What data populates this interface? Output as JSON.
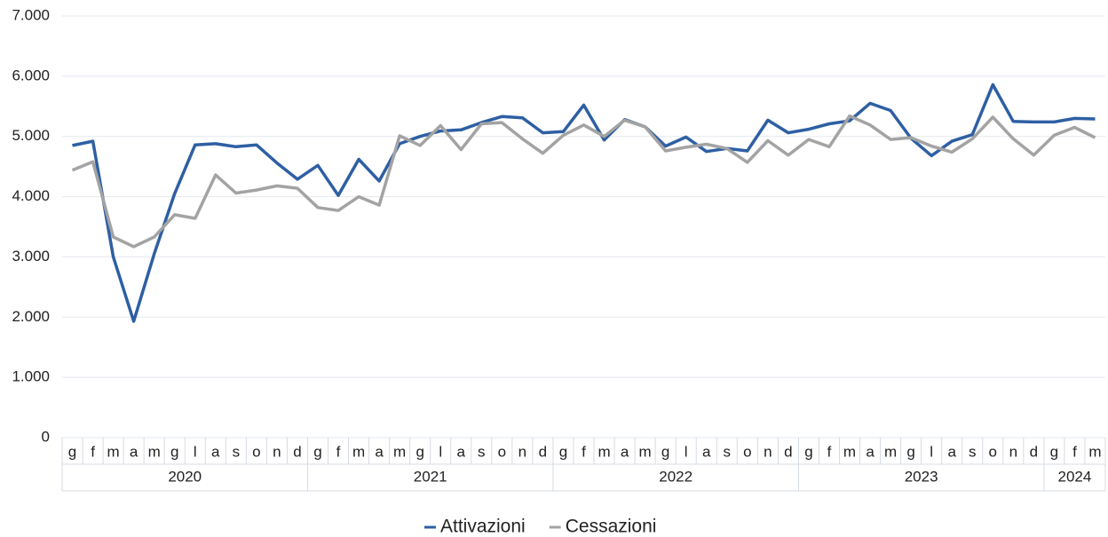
{
  "chart_data": {
    "type": "line",
    "periods": [
      {
        "year": "2020",
        "months": [
          "g",
          "f",
          "m",
          "a",
          "m",
          "g",
          "l",
          "a",
          "s",
          "o",
          "n",
          "d"
        ]
      },
      {
        "year": "2021",
        "months": [
          "g",
          "f",
          "m",
          "a",
          "m",
          "g",
          "l",
          "a",
          "s",
          "o",
          "n",
          "d"
        ]
      },
      {
        "year": "2022",
        "months": [
          "g",
          "f",
          "m",
          "a",
          "m",
          "g",
          "l",
          "a",
          "s",
          "o",
          "n",
          "d"
        ]
      },
      {
        "year": "2023",
        "months": [
          "g",
          "f",
          "m",
          "a",
          "m",
          "g",
          "l",
          "a",
          "s",
          "o",
          "n",
          "d"
        ]
      },
      {
        "year": "2024",
        "months": [
          "g",
          "f",
          "m"
        ]
      }
    ],
    "series": [
      {
        "name": "Attivazioni",
        "color": "#2e5fa3",
        "values": [
          4850,
          4920,
          3000,
          1930,
          3050,
          4050,
          4860,
          4880,
          4830,
          4860,
          4560,
          4290,
          4520,
          4020,
          4620,
          4260,
          4880,
          5000,
          5090,
          5110,
          5230,
          5330,
          5310,
          5060,
          5080,
          5520,
          4940,
          5280,
          5160,
          4840,
          4990,
          4750,
          4800,
          4760,
          5270,
          5060,
          5120,
          5210,
          5260,
          5550,
          5430,
          4970,
          4680,
          4920,
          5030,
          5860,
          5250,
          5240,
          5240,
          5300,
          5290
        ]
      },
      {
        "name": "Cessazioni",
        "color": "#a3a3a3",
        "values": [
          4440,
          4580,
          3330,
          3170,
          3330,
          3700,
          3640,
          4360,
          4060,
          4110,
          4180,
          4140,
          3820,
          3770,
          4000,
          3860,
          5010,
          4850,
          5180,
          4780,
          5210,
          5230,
          4960,
          4720,
          5020,
          5190,
          5000,
          5270,
          5160,
          4760,
          4820,
          4870,
          4800,
          4570,
          4930,
          4690,
          4950,
          4830,
          5340,
          5190,
          4950,
          4980,
          4840,
          4740,
          4960,
          5320,
          4960,
          4690,
          5020,
          5150,
          4980
        ]
      }
    ],
    "ylim": [
      0,
      7000
    ],
    "yticks": [
      0,
      {
        "value": 1000,
        "label": "1.000"
      },
      {
        "value": 2000,
        "label": "2.000"
      },
      {
        "value": 3000,
        "label": "3.000"
      },
      {
        "value": 4000,
        "label": "4.000"
      },
      {
        "value": 5000,
        "label": "5.000"
      },
      {
        "value": 6000,
        "label": "6.000"
      },
      {
        "value": 7000,
        "label": "7.000"
      }
    ],
    "grid": true
  }
}
